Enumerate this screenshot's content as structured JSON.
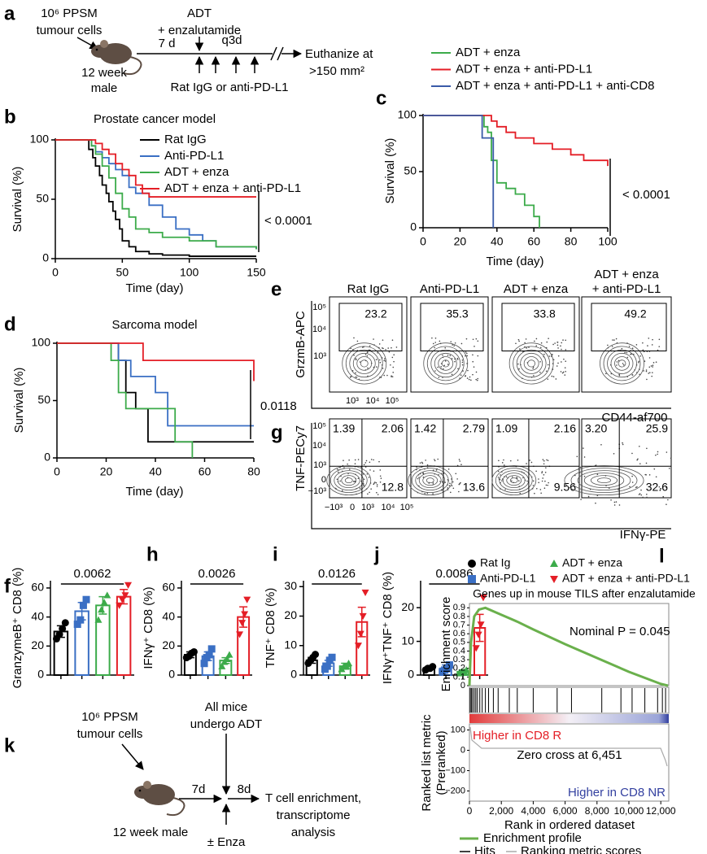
{
  "panel_labels": [
    "a",
    "b",
    "c",
    "d",
    "e",
    "f",
    "g",
    "h",
    "i",
    "j",
    "k",
    "l"
  ],
  "diagram_a": {
    "injection": [
      "10⁶ PPSM",
      "tumour cells"
    ],
    "mouse": [
      "12 week",
      "male"
    ],
    "delay": "7 d",
    "treatment": [
      "ADT",
      "+ enzalutamide"
    ],
    "schedule": "q3d",
    "antibody": "Rat IgG or anti-PD-L1",
    "endpoint": [
      "Euthanize at",
      ">150 mm²"
    ]
  },
  "chart_data": [
    {
      "type": "step",
      "title": "Prostate cancer model",
      "x_label": "Time (day)",
      "y_label": "Survival (%)",
      "xlim": [
        0,
        150
      ],
      "ylim": [
        0,
        100
      ],
      "xticks": [
        0,
        50,
        100,
        150
      ],
      "yticks": [
        0,
        50,
        100
      ],
      "annotation": "< 0.0001",
      "series": [
        {
          "name": "Rat IgG",
          "color": "#000000",
          "x": [
            0,
            20,
            25,
            28,
            30,
            33,
            35,
            38,
            40,
            43,
            45,
            48,
            50,
            55,
            60,
            70,
            80,
            100,
            150
          ],
          "values": [
            100,
            100,
            92,
            85,
            78,
            70,
            62,
            55,
            48,
            40,
            33,
            25,
            15,
            10,
            6,
            4,
            3,
            2,
            2
          ]
        },
        {
          "name": "Anti-PD-L1",
          "color": "#3a6fc4",
          "x": [
            0,
            22,
            27,
            30,
            35,
            40,
            45,
            50,
            55,
            60,
            70,
            80,
            90,
            100,
            110,
            120,
            150
          ],
          "values": [
            100,
            100,
            95,
            90,
            85,
            80,
            75,
            70,
            60,
            55,
            45,
            35,
            25,
            20,
            15,
            10,
            8
          ]
        },
        {
          "name": "ADT + enza",
          "color": "#3cab4a",
          "x": [
            0,
            23,
            27,
            30,
            35,
            40,
            45,
            50,
            55,
            60,
            70,
            80,
            100,
            120,
            150
          ],
          "values": [
            100,
            100,
            95,
            88,
            78,
            68,
            55,
            42,
            35,
            25,
            22,
            18,
            15,
            10,
            8
          ]
        },
        {
          "name": "ADT + enza + anti-PD-L1",
          "color": "#e41e26",
          "x": [
            0,
            25,
            30,
            35,
            40,
            45,
            50,
            55,
            60,
            65,
            70,
            80,
            150
          ],
          "values": [
            100,
            100,
            97,
            92,
            88,
            80,
            75,
            70,
            62,
            55,
            52,
            52,
            52
          ]
        }
      ]
    },
    {
      "type": "step",
      "x_label": "Time (day)",
      "y_label": "Survival (%)",
      "xlim": [
        0,
        100
      ],
      "ylim": [
        0,
        100
      ],
      "xticks": [
        0,
        20,
        40,
        60,
        80,
        100
      ],
      "yticks": [
        0,
        50,
        100
      ],
      "annotation": "< 0.0001",
      "series": [
        {
          "name": "ADT + enza",
          "color": "#3cab4a",
          "x": [
            0,
            30,
            33,
            35,
            37,
            40,
            45,
            50,
            55,
            60,
            63
          ],
          "values": [
            100,
            100,
            90,
            85,
            60,
            40,
            35,
            30,
            20,
            10,
            0
          ]
        },
        {
          "name": "ADT + enza + anti-PD-L1",
          "color": "#e41e26",
          "x": [
            0,
            30,
            37,
            40,
            45,
            50,
            60,
            70,
            80,
            87,
            100
          ],
          "values": [
            100,
            100,
            95,
            90,
            85,
            80,
            75,
            70,
            65,
            60,
            55
          ]
        },
        {
          "name": "ADT + enza + anti-PD-L1 + anti-CD8",
          "color": "#3a5ba8",
          "x": [
            0,
            30,
            32,
            38
          ],
          "values": [
            100,
            100,
            80,
            0
          ]
        }
      ]
    },
    {
      "type": "step",
      "title": "Sarcoma model",
      "x_label": "Time (day)",
      "y_label": "Survival (%)",
      "xlim": [
        0,
        80
      ],
      "ylim": [
        0,
        100
      ],
      "xticks": [
        0,
        20,
        40,
        60,
        80
      ],
      "yticks": [
        0,
        50,
        100
      ],
      "annotation": "0.0118",
      "series": [
        {
          "color": "#000000",
          "x": [
            0,
            25,
            28,
            32,
            37,
            80
          ],
          "values": [
            100,
            85,
            57,
            43,
            14,
            14
          ]
        },
        {
          "color": "#3a6fc4",
          "x": [
            0,
            25,
            30,
            40,
            45,
            80
          ],
          "values": [
            100,
            85,
            71,
            57,
            28,
            28
          ]
        },
        {
          "color": "#3cab4a",
          "x": [
            0,
            22,
            25,
            28,
            48,
            55
          ],
          "values": [
            100,
            85,
            57,
            43,
            14,
            0
          ]
        },
        {
          "color": "#e41e26",
          "x": [
            0,
            30,
            35,
            80
          ],
          "values": [
            100,
            100,
            85,
            67
          ]
        }
      ]
    },
    {
      "type": "bar",
      "y_label": "GranzymeB⁺ CD8 (%)",
      "ylim": [
        0,
        65
      ],
      "yticks": [
        0,
        20,
        40,
        60
      ],
      "annotation": "0.0062",
      "values": [
        30,
        44,
        48,
        54
      ],
      "errors": [
        4,
        6,
        6,
        5
      ],
      "points": [
        [
          25,
          28,
          32,
          36
        ],
        [
          35,
          38,
          48,
          52
        ],
        [
          38,
          45,
          50,
          55
        ],
        [
          48,
          52,
          55,
          62
        ]
      ]
    },
    {
      "type": "bar",
      "y_label": "IFNγ⁺ CD8 (%)",
      "ylim": [
        0,
        65
      ],
      "yticks": [
        0,
        20,
        40,
        60
      ],
      "annotation": "0.0026",
      "values": [
        14,
        13,
        10,
        40
      ],
      "errors": [
        2,
        3,
        2,
        7
      ],
      "points": [
        [
          12,
          13,
          15,
          16
        ],
        [
          8,
          12,
          14,
          18
        ],
        [
          6,
          9,
          11,
          14
        ],
        [
          28,
          36,
          42,
          52
        ]
      ]
    },
    {
      "type": "bar",
      "y_label": "TNF⁺ CD8 (%)",
      "ylim": [
        0,
        32
      ],
      "yticks": [
        0,
        10,
        20,
        30
      ],
      "annotation": "0.0126",
      "values": [
        5,
        4,
        3,
        18
      ],
      "errors": [
        1,
        1,
        1,
        5
      ],
      "points": [
        [
          4,
          5,
          6,
          7
        ],
        [
          2,
          3,
          5,
          6
        ],
        [
          2,
          3,
          3,
          4
        ],
        [
          10,
          14,
          20,
          28
        ]
      ]
    },
    {
      "type": "bar",
      "y_label": "IFNγ⁺TNF⁺ CD8 (%)",
      "ylim": [
        0,
        28
      ],
      "yticks": [
        0,
        10,
        20
      ],
      "annotation": "0.0086",
      "values": [
        2,
        2,
        1,
        14
      ],
      "errors": [
        0.5,
        1,
        0.5,
        4
      ],
      "points": [
        [
          1.5,
          2,
          2,
          2.5
        ],
        [
          1,
          1.5,
          2,
          3
        ],
        [
          0.5,
          1,
          1,
          1.5
        ],
        [
          8,
          12,
          15,
          23
        ]
      ]
    },
    {
      "type": "gsea",
      "title": "Genes up in mouse TILS after enzalutamide",
      "annotation": "Nominal P = 0.045",
      "y_label": "Enrichment score",
      "x_label": "Rank in ordered dataset",
      "color": "#6ab04c",
      "xlim": [
        0,
        12500
      ],
      "xticks": [
        0,
        {
          "value": 2000,
          "label": "2,000"
        },
        {
          "value": 4000,
          "label": "4,000"
        },
        {
          "value": 6000,
          "label": "6,000"
        },
        {
          "value": 8000,
          "label": "8,000"
        },
        {
          "value": 10000,
          "label": "10,000"
        },
        {
          "value": 12000,
          "label": "12,000"
        }
      ],
      "ylim": [
        0,
        0.95
      ],
      "yticks": [
        0,
        0.1,
        0.2,
        0.3,
        0.4,
        0.5,
        0.6,
        0.7,
        0.8,
        0.9
      ],
      "x": [
        0,
        100,
        300,
        600,
        1000,
        2000,
        3000,
        4000,
        6000,
        8000,
        10000,
        12000,
        12451
      ],
      "values": [
        0,
        0.5,
        0.8,
        0.88,
        0.9,
        0.82,
        0.74,
        0.65,
        0.48,
        0.32,
        0.16,
        0.02,
        0
      ],
      "hits": [
        50,
        120,
        200,
        300,
        400,
        500,
        650,
        800,
        1000,
        1200,
        1500,
        1800,
        2500,
        3000,
        4000,
        5500,
        6400,
        8300,
        9500,
        10200,
        11000,
        11800,
        12100,
        12300
      ],
      "metric": {
        "y_label": [
          "Ranked list metric",
          "(Preranked)"
        ],
        "ylim": [
          -250,
          130
        ],
        "yticks": [
          100,
          0,
          {
            "value": -100,
            "label": "−100"
          },
          {
            "value": -200,
            "label": "−200"
          }
        ],
        "labels": [
          "Higher in CD8 R",
          "Zero cross at 6,451",
          "Higher in CD8 NR"
        ]
      },
      "legend": [
        "Enrichment profile",
        "Hits",
        "Ranking metric scores"
      ]
    }
  ],
  "flow_groups": [
    [
      "Rat IgG"
    ],
    [
      "Anti-PD-L1"
    ],
    [
      "ADT + enza"
    ],
    [
      "ADT + enza",
      "+ anti-PD-L1"
    ]
  ],
  "flow_e": {
    "y_label": "GrzmB-APC",
    "x_label": "CD44-af700",
    "yticks": [
      "10⁵",
      "10⁴",
      "10³"
    ],
    "xticks": [
      "10³",
      "10⁴",
      "10⁵"
    ],
    "values": [
      "23.2",
      "35.3",
      "33.8",
      "49.2"
    ]
  },
  "flow_g": {
    "y_label": "TNF-PECy7",
    "x_label": "IFNγ-PE",
    "yticks": [
      "10⁵",
      "10⁴",
      "10³",
      "0",
      "−10³"
    ],
    "xticks": [
      "−10³",
      "0",
      "10³",
      "10⁴",
      "10⁵"
    ],
    "values": [
      [
        "1.39",
        "2.06",
        "12.8"
      ],
      [
        "1.42",
        "2.79",
        "13.6"
      ],
      [
        "1.09",
        "2.16",
        "9.56"
      ],
      [
        "3.20",
        "25.9",
        "32.6"
      ]
    ]
  },
  "group_legend": {
    "names": [
      "Rat Ig",
      "Anti-PD-L1",
      "ADT + enza",
      "ADT + enza + anti-PD-L1"
    ],
    "colors": [
      "#000000",
      "#3a6fc4",
      "#3cab4a",
      "#e41e26"
    ],
    "markers": [
      "circle",
      "square",
      "triangle",
      "triangle-down"
    ]
  },
  "diagram_k": {
    "injection": [
      "10⁶ PPSM",
      "tumour cells"
    ],
    "mouse": "12 week male",
    "delay1": "7d",
    "delay2": "8d",
    "adt": [
      "All mice",
      "undergo ADT"
    ],
    "outcome": [
      "T cell enrichment,",
      "transcriptome",
      "analysis"
    ],
    "enza": "± Enza"
  }
}
